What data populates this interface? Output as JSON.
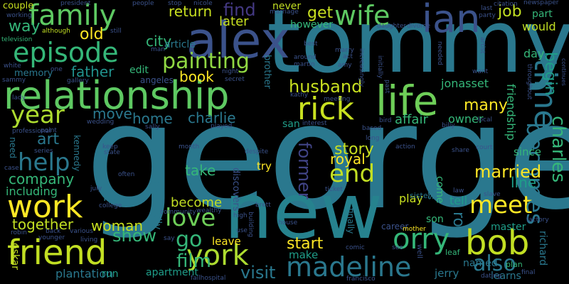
{
  "words": [
    {
      "text": "george",
      "color": "#2a788e"
    },
    {
      "text": "tommy",
      "color": "#2a788e"
    },
    {
      "text": "new",
      "color": "#26828e"
    },
    {
      "text": "alex",
      "color": "#3b528b"
    },
    {
      "text": "relationship",
      "color": "#5ec962"
    },
    {
      "text": "life",
      "color": "#6ece58"
    },
    {
      "text": "friend",
      "color": "#c2df23"
    },
    {
      "text": "family",
      "color": "#5ec962"
    },
    {
      "text": "episode",
      "color": "#35b779"
    },
    {
      "text": "wife",
      "color": "#5ec962"
    },
    {
      "text": "ian",
      "color": "#3b528b"
    },
    {
      "text": "bob",
      "color": "#c2df23"
    },
    {
      "text": "york",
      "color": "#addc30"
    },
    {
      "text": "madeline",
      "color": "#2a788e"
    },
    {
      "text": "rick",
      "color": "#c8e020"
    },
    {
      "text": "orry",
      "color": "#35b779"
    },
    {
      "text": "work",
      "color": "#fde725"
    },
    {
      "text": "time",
      "color": "#2a788e"
    },
    {
      "text": "year",
      "color": "#addc30"
    },
    {
      "text": "meet",
      "color": "#fde725"
    },
    {
      "text": "love",
      "color": "#6ece58"
    },
    {
      "text": "help",
      "color": "#2a788e"
    },
    {
      "text": "end",
      "color": "#c2df23"
    },
    {
      "text": "painting",
      "color": "#90d743"
    },
    {
      "text": "becomes",
      "color": "#2a788e"
    },
    {
      "text": "charles",
      "color": "#35b779"
    },
    {
      "text": "begin",
      "color": "#1f9e89"
    },
    {
      "text": "film",
      "color": "#35b779"
    },
    {
      "text": "show",
      "color": "#35b779"
    },
    {
      "text": "go",
      "color": "#35b779"
    },
    {
      "text": "also",
      "color": "#2a788e"
    },
    {
      "text": "start",
      "color": "#fde725"
    },
    {
      "text": "visit",
      "color": "#2a788e"
    },
    {
      "text": "married",
      "color": "#fde725"
    },
    {
      "text": "husband",
      "color": "#c8e020"
    },
    {
      "text": "later",
      "color": "#c8e020"
    },
    {
      "text": "find",
      "color": "#443983"
    },
    {
      "text": "return",
      "color": "#c8e020"
    },
    {
      "text": "get",
      "color": "#c8e020"
    },
    {
      "text": "job",
      "color": "#c2df23"
    },
    {
      "text": "way",
      "color": "#35b779"
    },
    {
      "text": "old",
      "color": "#fde725"
    },
    {
      "text": "city",
      "color": "#35b779"
    },
    {
      "text": "father",
      "color": "#21918c"
    },
    {
      "text": "book",
      "color": "#fde725"
    },
    {
      "text": "charlie",
      "color": "#2a788e"
    },
    {
      "text": "story",
      "color": "#c8e020"
    },
    {
      "text": "many",
      "color": "#fde725"
    },
    {
      "text": "art",
      "color": "#2a788e"
    },
    {
      "text": "home",
      "color": "#2a788e"
    },
    {
      "text": "move",
      "color": "#2a788e"
    },
    {
      "text": "company",
      "color": "#35b779"
    },
    {
      "text": "former",
      "color": "#414487"
    },
    {
      "text": "royal",
      "color": "#fde725"
    },
    {
      "text": "rob",
      "color": "#2a788e"
    },
    {
      "text": "take",
      "color": "#35b779"
    },
    {
      "text": "become",
      "color": "#c2df23"
    },
    {
      "text": "woman",
      "color": "#c8e020"
    },
    {
      "text": "together",
      "color": "#c2df23"
    },
    {
      "text": "including",
      "color": "#35b779"
    },
    {
      "text": "line",
      "color": "#1f9e89"
    },
    {
      "text": "tell",
      "color": "#1f9e89"
    },
    {
      "text": "affair",
      "color": "#35b779"
    },
    {
      "text": "owner",
      "color": "#35b779"
    },
    {
      "text": "jonasset",
      "color": "#35b779"
    },
    {
      "text": "friendship",
      "color": "#35b779"
    },
    {
      "text": "plantation",
      "color": "#2a788e"
    },
    {
      "text": "apartment",
      "color": "#1f9e89"
    },
    {
      "text": "jerry",
      "color": "#2a788e"
    },
    {
      "text": "make",
      "color": "#1f9e89"
    },
    {
      "text": "leave",
      "color": "#fde725"
    },
    {
      "text": "try",
      "color": "#fde725"
    },
    {
      "text": "play",
      "color": "#c8e020"
    },
    {
      "text": "master",
      "color": "#1f9e89"
    },
    {
      "text": "son",
      "color": "#35b779"
    },
    {
      "text": "richard",
      "color": "#2a788e"
    },
    {
      "text": "learns",
      "color": "#2a788e"
    },
    {
      "text": "named",
      "color": "#2a788e"
    },
    {
      "text": "never",
      "color": "#c2df23"
    },
    {
      "text": "however",
      "color": "#35b779"
    },
    {
      "text": "would",
      "color": "#c2df23"
    },
    {
      "text": "part",
      "color": "#35b779"
    },
    {
      "text": "day",
      "color": "#35b779"
    },
    {
      "text": "since",
      "color": "#35b779"
    },
    {
      "text": "come",
      "color": "#35b779"
    },
    {
      "text": "decides",
      "color": "#2a788e"
    },
    {
      "text": "oskar",
      "color": "#c2df23"
    },
    {
      "text": "run",
      "color": "#1f9e89"
    },
    {
      "text": "san",
      "color": "#1f9e89"
    },
    {
      "text": "career",
      "color": "#3b528b"
    },
    {
      "text": "eventually",
      "color": "#2a788e"
    },
    {
      "text": "discovers",
      "color": "#3b528b"
    },
    {
      "text": "edit",
      "color": "#35b779"
    },
    {
      "text": "los",
      "color": "#2a788e"
    },
    {
      "text": "kennedy",
      "color": "#2a788e"
    },
    {
      "text": "need",
      "color": "#2a788e"
    },
    {
      "text": "article",
      "color": "#2a788e"
    },
    {
      "text": "brother",
      "color": "#2a788e"
    },
    {
      "text": "memory",
      "color": "#2a788e"
    },
    {
      "text": "couple",
      "color": "#c8e020"
    },
    {
      "text": "sister",
      "color": "#2a788e"
    },
    {
      "text": "finally",
      "color": "#2a788e"
    },
    {
      "text": "plan",
      "color": "#35b779"
    },
    {
      "text": "mother",
      "color": "#fde725"
    },
    {
      "text": "leaf",
      "color": "#35b779"
    },
    {
      "text": "factory",
      "color": "#3b528b"
    },
    {
      "text": "slave",
      "color": "#3b528b"
    },
    {
      "text": "although",
      "color": "#c2df23"
    },
    {
      "text": "television",
      "color": "#35b779"
    },
    {
      "text": "working",
      "color": "#3b528b"
    },
    {
      "text": "president",
      "color": "#3b528b"
    },
    {
      "text": "citation",
      "color": "#3b528b"
    },
    {
      "text": "newspaper",
      "color": "#3b528b"
    },
    {
      "text": "people",
      "color": "#3b528b"
    },
    {
      "text": "nicole",
      "color": "#3b528b"
    },
    {
      "text": "marriage",
      "color": "#3b528b"
    },
    {
      "text": "daughter",
      "color": "#3b528b"
    },
    {
      "text": "divorce",
      "color": "#3b528b"
    },
    {
      "text": "last",
      "color": "#3b528b"
    },
    {
      "text": "party",
      "color": "#3b528b"
    },
    {
      "text": "still",
      "color": "#3b528b"
    },
    {
      "text": "man",
      "color": "#3b528b"
    },
    {
      "text": "best",
      "color": "#3b528b"
    },
    {
      "text": "marry",
      "color": "#3b528b"
    },
    {
      "text": "act",
      "color": "#3b528b"
    },
    {
      "text": "around",
      "color": "#3b528b"
    },
    {
      "text": "martin",
      "color": "#3b528b"
    },
    {
      "text": "amy",
      "color": "#3b528b"
    },
    {
      "text": "angeles",
      "color": "#3b528b"
    },
    {
      "text": "night",
      "color": "#3b528b"
    },
    {
      "text": "secret",
      "color": "#3b528b"
    },
    {
      "text": "kathy",
      "color": "#3b528b"
    },
    {
      "text": "meeting",
      "color": "#3b528b"
    },
    {
      "text": "interest",
      "color": "#3b528b"
    },
    {
      "text": "bird",
      "color": "#3b528b"
    },
    {
      "text": "local",
      "color": "#3b528b"
    },
    {
      "text": "billy",
      "color": "#3b528b"
    },
    {
      "text": "sally",
      "color": "#3b528b"
    },
    {
      "text": "played",
      "color": "#3b528b"
    },
    {
      "text": "wedding",
      "color": "#3b528b"
    },
    {
      "text": "professional",
      "color": "#3b528b"
    },
    {
      "text": "lady",
      "color": "#3b528b"
    },
    {
      "text": "sammy",
      "color": "#3b528b"
    },
    {
      "text": "white",
      "color": "#3b528b"
    },
    {
      "text": "gallery",
      "color": "#3b528b"
    },
    {
      "text": "one",
      "color": "#3b528b"
    },
    {
      "text": "point",
      "color": "#3b528b"
    },
    {
      "text": "series",
      "color": "#3b528b"
    },
    {
      "text": "keep",
      "color": "#3b528b"
    },
    {
      "text": "state",
      "color": "#3b528b"
    },
    {
      "text": "month",
      "color": "#3b528b"
    },
    {
      "text": "despite",
      "color": "#3b528b"
    },
    {
      "text": "long",
      "color": "#3b528b"
    },
    {
      "text": "based",
      "color": "#3b528b"
    },
    {
      "text": "action",
      "color": "#3b528b"
    },
    {
      "text": "share",
      "color": "#3b528b"
    },
    {
      "text": "court",
      "color": "#3b528b"
    },
    {
      "text": "often",
      "color": "#3b528b"
    },
    {
      "text": "july",
      "color": "#3b528b"
    },
    {
      "text": "college",
      "color": "#3b528b"
    },
    {
      "text": "community",
      "color": "#3b528b"
    },
    {
      "text": "wealthy",
      "color": "#3b528b"
    },
    {
      "text": "high",
      "color": "#3b528b"
    },
    {
      "text": "use",
      "color": "#3b528b"
    },
    {
      "text": "house",
      "color": "#3b528b"
    },
    {
      "text": "brett",
      "color": "#3b528b"
    },
    {
      "text": "ticket",
      "color": "#3b528b"
    },
    {
      "text": "law",
      "color": "#3b528b"
    },
    {
      "text": "robin",
      "color": "#3b528b"
    },
    {
      "text": "younger",
      "color": "#3b528b"
    },
    {
      "text": "back",
      "color": "#3b528b"
    },
    {
      "text": "various",
      "color": "#3b528b"
    },
    {
      "text": "living",
      "color": "#3b528b"
    },
    {
      "text": "comic",
      "color": "#3b528b"
    },
    {
      "text": "say",
      "color": "#3b528b"
    },
    {
      "text": "fallhospital",
      "color": "#3b528b"
    },
    {
      "text": "francisco",
      "color": "#3b528b"
    },
    {
      "text": "dating",
      "color": "#3b528b"
    },
    {
      "text": "final",
      "color": "#3b528b"
    },
    {
      "text": "see",
      "color": "#3b528b"
    },
    {
      "text": "well",
      "color": "#3b528b"
    },
    {
      "text": "case",
      "color": "#3b528b"
    },
    {
      "text": "building",
      "color": "#3b528b"
    },
    {
      "text": "artist",
      "color": "#3b528b"
    },
    {
      "text": "needed",
      "color": "#3b528b"
    },
    {
      "text": "increasingly",
      "color": "#3b528b"
    },
    {
      "text": "initially",
      "color": "#3b528b"
    },
    {
      "text": "past",
      "color": "#3b528b"
    },
    {
      "text": "throughout",
      "color": "#3b528b"
    },
    {
      "text": "continues",
      "color": "#3b528b"
    },
    {
      "text": "want",
      "color": "#3b528b"
    },
    {
      "text": "stop",
      "color": "#3b528b"
    }
  ]
}
